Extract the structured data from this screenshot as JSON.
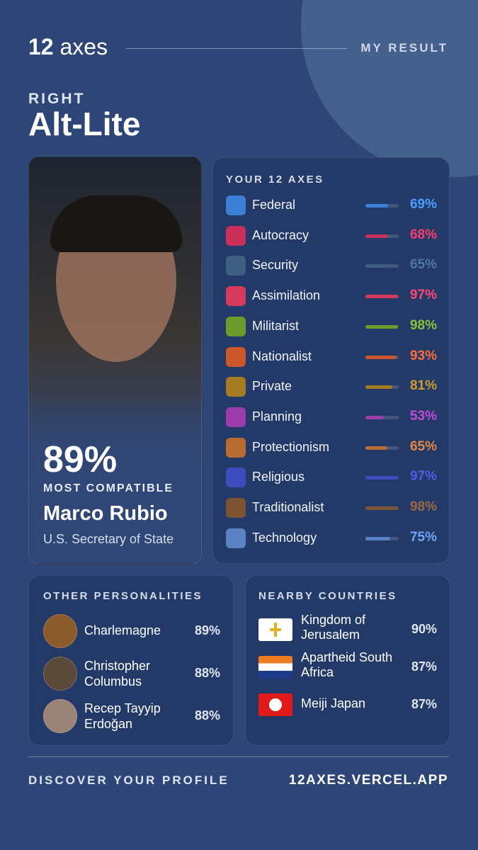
{
  "header": {
    "logo_number": "12",
    "logo_word": "axes",
    "tag": "MY RESULT"
  },
  "result": {
    "category": "RIGHT",
    "ideology": "Alt-Lite"
  },
  "match": {
    "percent": "89%",
    "caption": "MOST COMPATIBLE",
    "name": "Marco Rubio",
    "role": "U.S. Secretary of State"
  },
  "axes": {
    "title": "YOUR 12 AXES",
    "items": [
      {
        "name": "Federal",
        "value": 69,
        "label": "69%",
        "color": "#3b7fd6"
      },
      {
        "name": "Autocracy",
        "value": 68,
        "label": "68%",
        "color": "#c8305a"
      },
      {
        "name": "Security",
        "value": 65,
        "label": "65%",
        "color": "#3f5f82"
      },
      {
        "name": "Assimilation",
        "value": 97,
        "label": "97%",
        "color": "#d63a5c"
      },
      {
        "name": "Militarist",
        "value": 98,
        "label": "98%",
        "color": "#6e9a2c"
      },
      {
        "name": "Nationalist",
        "value": 93,
        "label": "93%",
        "color": "#cc562c"
      },
      {
        "name": "Private",
        "value": 81,
        "label": "81%",
        "color": "#a57c22"
      },
      {
        "name": "Planning",
        "value": 53,
        "label": "53%",
        "color": "#9c3cac"
      },
      {
        "name": "Protectionism",
        "value": 65,
        "label": "65%",
        "color": "#b86c34"
      },
      {
        "name": "Religious",
        "value": 97,
        "label": "97%",
        "color": "#3c4cbc"
      },
      {
        "name": "Traditionalist",
        "value": 98,
        "label": "98%",
        "color": "#7c5434"
      },
      {
        "name": "Technology",
        "value": 75,
        "label": "75%",
        "color": "#5a82c4"
      }
    ]
  },
  "personalities": {
    "title": "OTHER PERSONALITIES",
    "items": [
      {
        "name": "Charlemagne",
        "percent": "89%"
      },
      {
        "name": "Christopher Columbus",
        "percent": "88%"
      },
      {
        "name": "Recep Tayyip Erdoğan",
        "percent": "88%"
      }
    ]
  },
  "countries": {
    "title": "NEARBY COUNTRIES",
    "items": [
      {
        "name": "Kingdom of Jerusalem",
        "percent": "90%"
      },
      {
        "name": "Apartheid South Africa",
        "percent": "87%"
      },
      {
        "name": "Meiji Japan",
        "percent": "87%"
      }
    ]
  },
  "footer": {
    "cta": "DISCOVER YOUR PROFILE",
    "url": "12AXES.VERCEL.APP"
  }
}
